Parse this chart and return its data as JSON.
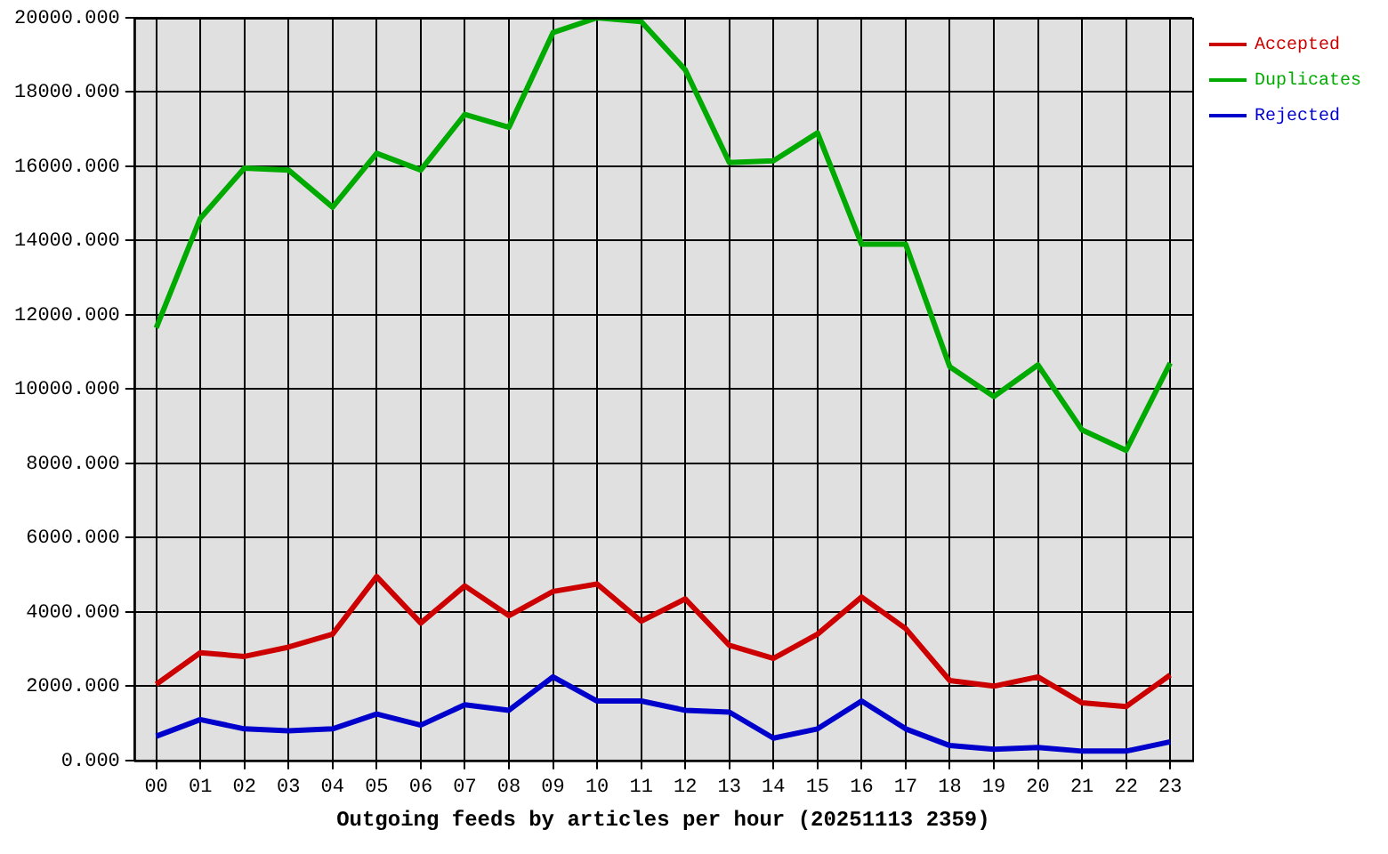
{
  "chart_data": {
    "type": "line",
    "xlabel": "Outgoing feeds by articles per hour (20251113 2359)",
    "categories": [
      "00",
      "01",
      "02",
      "03",
      "04",
      "05",
      "06",
      "07",
      "08",
      "09",
      "10",
      "11",
      "12",
      "13",
      "14",
      "15",
      "16",
      "17",
      "18",
      "19",
      "20",
      "21",
      "22",
      "23"
    ],
    "series": [
      {
        "name": "Accepted",
        "color": "#cc0000",
        "values": [
          2050,
          2900,
          2800,
          3050,
          3400,
          4950,
          3700,
          4700,
          3900,
          4550,
          4750,
          3750,
          4350,
          3100,
          2750,
          3400,
          4400,
          3550,
          2150,
          2000,
          2250,
          1550,
          1450,
          2300
        ]
      },
      {
        "name": "Duplicates",
        "color": "#00aa00",
        "values": [
          11650,
          14600,
          15950,
          15900,
          14900,
          16350,
          15900,
          17400,
          17050,
          19600,
          20000,
          19900,
          18600,
          16100,
          16150,
          16900,
          13900,
          13900,
          10600,
          9800,
          10650,
          8900,
          8350,
          10700
        ]
      },
      {
        "name": "Rejected",
        "color": "#0000cc",
        "values": [
          650,
          1100,
          850,
          800,
          850,
          1250,
          950,
          1500,
          1350,
          2250,
          1600,
          1600,
          1350,
          1300,
          600,
          850,
          1600,
          850,
          400,
          300,
          350,
          250,
          250,
          500
        ]
      }
    ],
    "ylim": [
      0,
      20000
    ],
    "yticks": [
      {
        "value": 0,
        "label": "0.000"
      },
      {
        "value": 2000,
        "label": "2000.000"
      },
      {
        "value": 4000,
        "label": "4000.000"
      },
      {
        "value": 6000,
        "label": "6000.000"
      },
      {
        "value": 8000,
        "label": "8000.000"
      },
      {
        "value": 10000,
        "label": "10000.000"
      },
      {
        "value": 12000,
        "label": "12000.000"
      },
      {
        "value": 14000,
        "label": "14000.000"
      },
      {
        "value": 16000,
        "label": "16000.000"
      },
      {
        "value": 18000,
        "label": "18000.000"
      },
      {
        "value": 20000,
        "label": "20000.000"
      }
    ],
    "grid": true,
    "legend": "top right",
    "marker": "none",
    "line_style": "solid"
  }
}
